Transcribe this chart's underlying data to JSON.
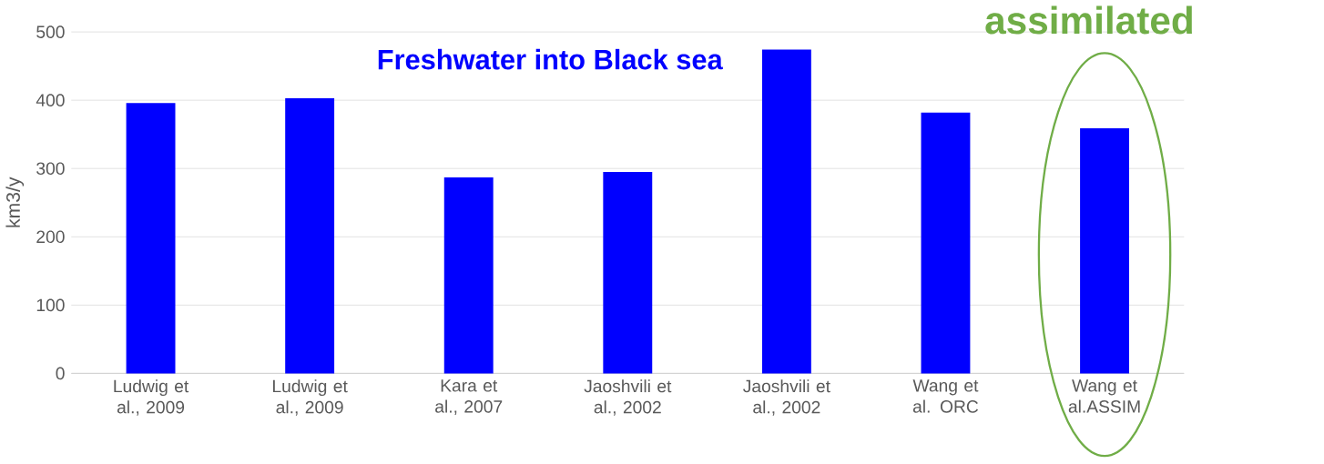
{
  "chart_data": {
    "type": "bar",
    "title": "Freshwater into Black sea",
    "ylabel": "km3/y",
    "categories": [
      "Ludwig et al., 2009",
      "Ludwig et al., 2009",
      "Kara et al., 2007",
      "Jaoshvili et al., 2002",
      "Jaoshvili et al., 2002",
      "Wang et al. ORC",
      "Wang et al.ASSIM"
    ],
    "values": [
      396,
      403,
      287,
      295,
      474,
      382,
      359
    ],
    "color": "#0000ff",
    "ylim": [
      0,
      500
    ],
    "yticks": [
      0,
      100,
      200,
      300,
      400,
      500
    ],
    "grid": "y",
    "annotations": [
      "assimilated"
    ]
  }
}
